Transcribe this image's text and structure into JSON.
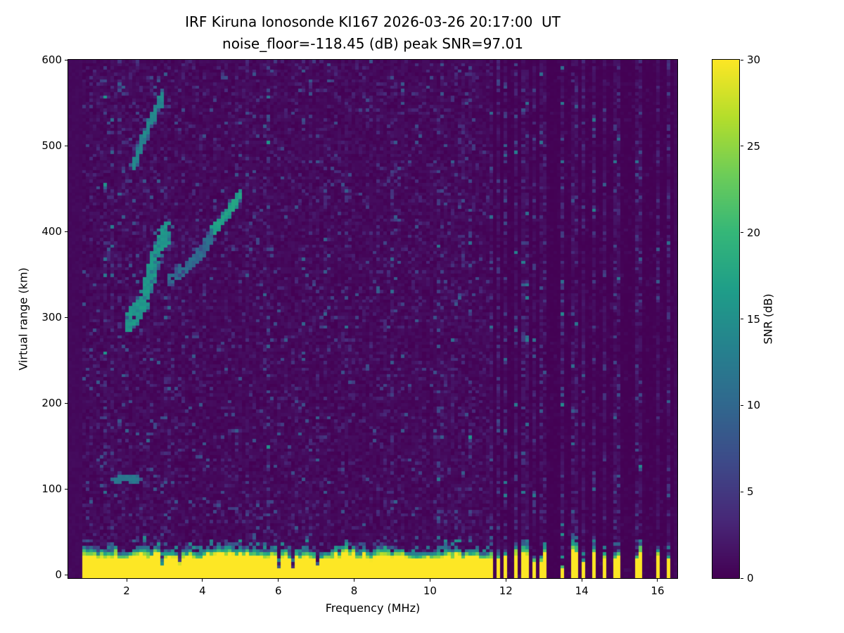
{
  "figure": {
    "background": "#ffffff",
    "text_color": "#000000"
  },
  "chart_data": {
    "type": "heatmap",
    "title": "IRF Kiruna Ionosonde KI167 2026-03-26 20:17:00  UT",
    "subtitle": "noise_floor=-118.45 (dB) peak SNR=97.01",
    "xlabel": "Frequency (MHz)",
    "ylabel": "Virtual range (km)",
    "colorbar_label": "SNR (dB)",
    "colormap": "viridis",
    "colormap_colors": {
      "low": "#440154",
      "mid": "#26828e",
      "high": "#fde725"
    },
    "xlim": [
      0.46,
      16.52
    ],
    "ylim": [
      -4,
      600
    ],
    "clim": [
      0,
      30
    ],
    "xticks": [
      2,
      4,
      6,
      8,
      10,
      12,
      14,
      16
    ],
    "yticks": [
      0,
      100,
      200,
      300,
      400,
      500,
      600
    ],
    "colorbar_ticks": [
      0,
      5,
      10,
      15,
      20,
      25,
      30
    ],
    "noise_floor_db": -118.45,
    "peak_snr_db": 97.01,
    "data_freq_range": [
      0.88,
      16.45
    ],
    "ground_clutter": {
      "freq_start": 0.88,
      "freq_end": 11.62,
      "top_km_mean": 27,
      "snr_db": 30
    },
    "interference": {
      "comb_start": 11.62,
      "comb_end": 13.12,
      "comb_period": 0.155,
      "comb_width": 0.075,
      "stripes_mhz": [
        13.5,
        13.82,
        14.02,
        14.32,
        14.6,
        14.92,
        15.42,
        15.55,
        16.02,
        16.3
      ]
    },
    "echo_traces": [
      {
        "name": "f-region-lower-cluster",
        "points": [
          [
            2.05,
            295
          ],
          [
            2.2,
            302
          ],
          [
            2.45,
            318
          ],
          [
            2.65,
            352
          ],
          [
            2.85,
            390
          ],
          [
            3.1,
            398
          ]
        ],
        "snr_db": 16,
        "jitter_mhz": 0.18,
        "jitter_km": 24,
        "density": 520
      },
      {
        "name": "f-region-upper-arc",
        "points": [
          [
            2.2,
            478
          ],
          [
            2.4,
            502
          ],
          [
            2.6,
            524
          ],
          [
            2.8,
            544
          ],
          [
            2.95,
            560
          ]
        ],
        "snr_db": 14,
        "jitter_mhz": 0.09,
        "jitter_km": 10,
        "density": 260
      },
      {
        "name": "second-trace-faint",
        "points": [
          [
            3.15,
            342
          ],
          [
            3.6,
            358
          ],
          [
            4.0,
            378
          ],
          [
            4.3,
            400
          ]
        ],
        "snr_db": 11,
        "jitter_mhz": 0.13,
        "jitter_km": 13,
        "density": 210
      },
      {
        "name": "second-trace-bright",
        "points": [
          [
            4.3,
            402
          ],
          [
            4.55,
            415
          ],
          [
            4.75,
            428
          ],
          [
            5.0,
            443
          ]
        ],
        "snr_db": 17,
        "jitter_mhz": 0.06,
        "jitter_km": 8,
        "density": 300
      },
      {
        "name": "sporadic-e-patch",
        "points": [
          [
            1.68,
            110
          ],
          [
            2.0,
            113
          ],
          [
            2.3,
            110
          ]
        ],
        "snr_db": 12,
        "jitter_mhz": 0.1,
        "jitter_km": 7,
        "density": 170
      }
    ]
  }
}
